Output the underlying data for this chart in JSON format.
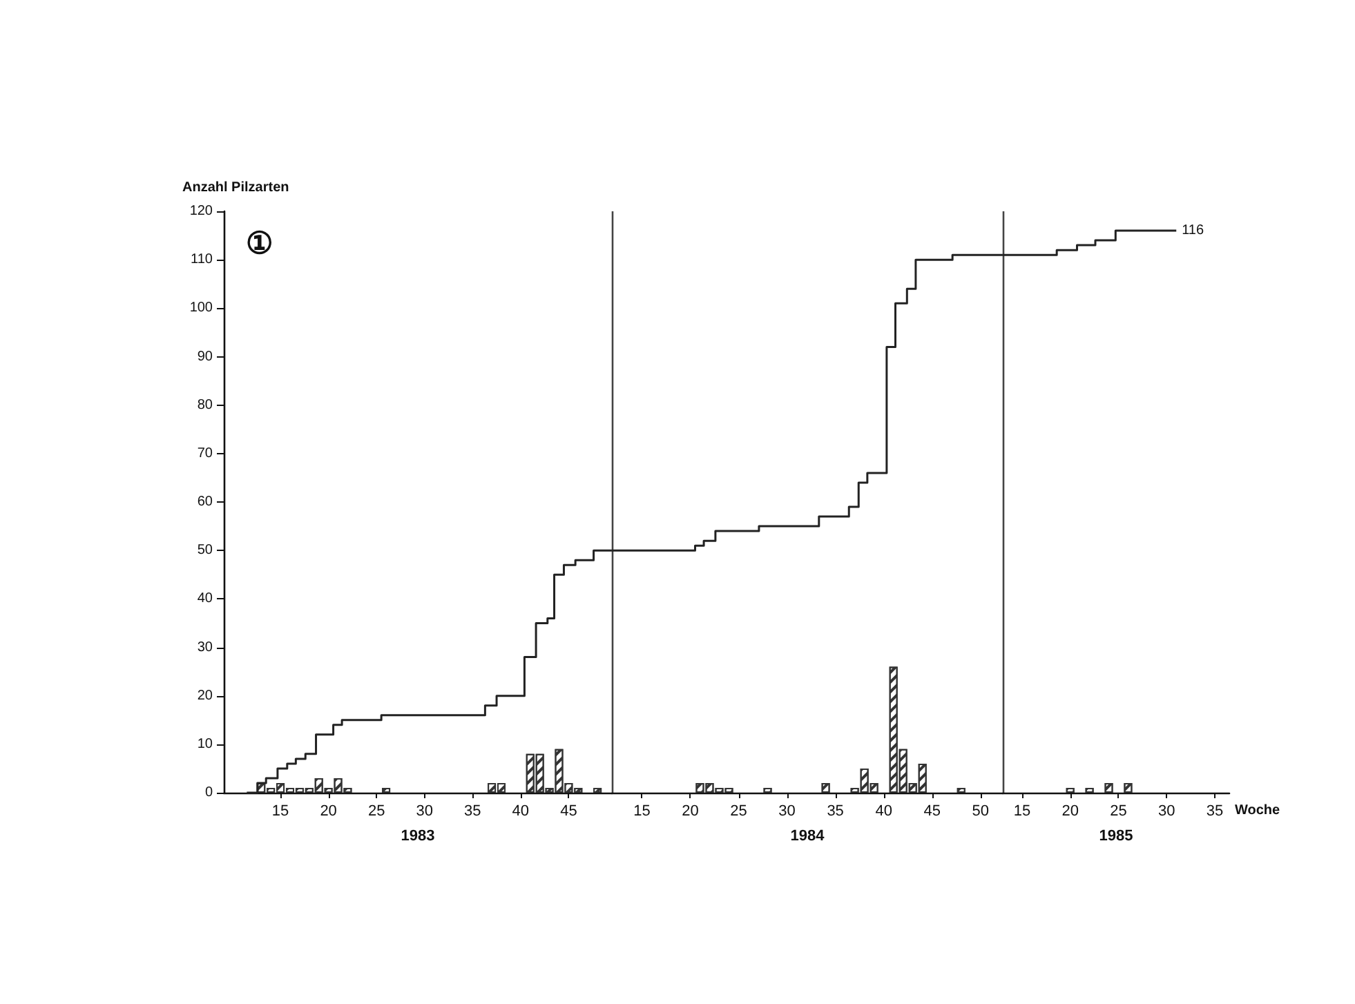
{
  "chart_data": [
    {
      "type": "step",
      "ylabel": "Anzahl Pilzarten",
      "xlabel": "1983",
      "annotations": [
        "①"
      ],
      "xlim": [
        9.1,
        49.5
      ],
      "xticks": [
        15,
        20,
        25,
        30,
        35,
        40,
        45
      ],
      "ylim": [
        0,
        120
      ],
      "yticks": [
        0,
        10,
        20,
        30,
        40,
        50,
        60,
        70,
        80,
        90,
        100,
        110,
        120
      ],
      "ref_lines": [
        {
          "axis": "x",
          "value": 49.5
        }
      ],
      "series": [
        {
          "color": "#222222",
          "x": [
            11.5,
            12.6,
            13.5,
            14.7,
            15.7,
            16.6,
            17.6,
            18.7,
            20.5,
            21.4,
            25.5,
            36.3,
            37.5,
            40.4,
            41.6,
            42.8,
            43.5,
            44.5,
            45.7,
            47.6,
            49.5
          ],
          "values": [
            0,
            2,
            3,
            5,
            6,
            7,
            8,
            12,
            14,
            15,
            16,
            18,
            20,
            28,
            35,
            36,
            45,
            47,
            48,
            50,
            50
          ]
        },
        {
          "type": "bar",
          "color": "#333333",
          "x": [
            13,
            14,
            15,
            16,
            17,
            18,
            19,
            20,
            21,
            22,
            26,
            37,
            38,
            41,
            42,
            43,
            44,
            45,
            46,
            48
          ],
          "values": [
            2,
            1,
            2,
            1,
            1,
            1,
            3,
            1,
            3,
            1,
            1,
            2,
            2,
            8,
            8,
            1,
            9,
            2,
            1,
            1
          ]
        }
      ]
    },
    {
      "type": "step",
      "xlabel": "1984",
      "xlim": [
        11.9,
        52.3
      ],
      "xticks": [
        15,
        20,
        25,
        30,
        35,
        40,
        45,
        50
      ],
      "ylim": [
        0,
        120
      ],
      "tick_labels": "x",
      "ref_lines": [
        {
          "axis": "x",
          "value": 52.3
        }
      ],
      "series": [
        {
          "color": "#222222",
          "x": [
            11.9,
            20.5,
            21.4,
            22.6,
            27.1,
            33.3,
            36.4,
            37.4,
            38.3,
            40.3,
            41.2,
            42.4,
            43.3,
            47.1,
            52.3
          ],
          "values": [
            50,
            51,
            52,
            54,
            55,
            57,
            59,
            64,
            66,
            92,
            101,
            104,
            110,
            111,
            111
          ]
        },
        {
          "type": "bar",
          "color": "#333333",
          "x": [
            21,
            22,
            23,
            24,
            28,
            34,
            37,
            38,
            39,
            41,
            42,
            43,
            44,
            48
          ],
          "values": [
            2,
            2,
            1,
            1,
            1,
            2,
            1,
            5,
            2,
            26,
            9,
            2,
            6,
            1
          ]
        }
      ]
    },
    {
      "type": "step",
      "xlabel": "1985",
      "annotations": [
        "Woche",
        {
          "text": "116",
          "x": 31,
          "y": 116
        }
      ],
      "xlim": [
        13,
        36.5
      ],
      "xticks": [
        15,
        20,
        25,
        30,
        35
      ],
      "ylim": [
        0,
        120
      ],
      "tick_labels": "x",
      "series": [
        {
          "color": "#222222",
          "x": [
            13,
            18.6,
            20.7,
            22.6,
            24.7,
            31
          ],
          "values": [
            111,
            112,
            113,
            114,
            116,
            116
          ]
        },
        {
          "type": "bar",
          "color": "#333333",
          "x": [
            20,
            22,
            24,
            26
          ],
          "values": [
            1,
            1,
            2,
            2
          ]
        }
      ]
    }
  ]
}
